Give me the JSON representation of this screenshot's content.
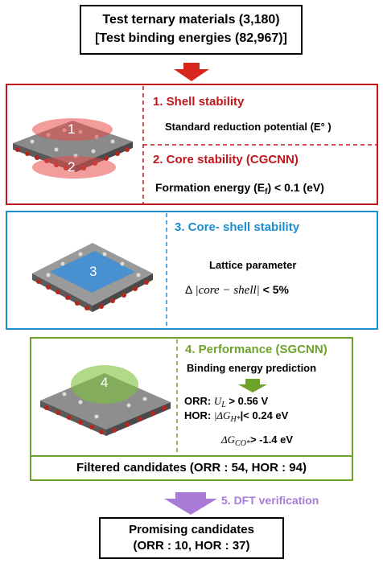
{
  "top_box": {
    "line1": "Test ternary materials (3,180)",
    "line2": "[Test binding energies (82,967)]"
  },
  "stage1": {
    "title": "1. Shell stability",
    "criterion": "Standard reduction potential (E° )",
    "marker1": "1",
    "marker2": "2",
    "color": "#c0161b"
  },
  "stage2": {
    "title": "2. Core stability (CGCNN)",
    "criterion_prefix": "Formation energy (E",
    "criterion_sub": "f",
    "criterion_suffix": ") < 0.1 (eV)"
  },
  "stage3": {
    "title": "3. Core- shell stability",
    "criterion1": "Lattice parameter",
    "delta": "Δ",
    "expr": "|core − shell|",
    "threshold": " < 5%",
    "marker": "3",
    "color": "#1b8ed1"
  },
  "stage4": {
    "title": "4. Performance (SGCNN)",
    "subtitle": "Binding energy prediction",
    "orr_prefix": "ORR: ",
    "orr_sym": "U",
    "orr_sub": "L",
    "orr_suffix": " > 0.56 V",
    "hor_prefix": "HOR: ",
    "hor_sym": "|ΔG",
    "hor_sub": "H*",
    "hor_suffix": "|< 0.24 eV",
    "co_sym": "ΔG",
    "co_sub": "CO*",
    "co_suffix": "> -1.4 eV",
    "marker": "4",
    "color": "#6ea22a",
    "filtered": "Filtered candidates (ORR : 54, HOR : 94)"
  },
  "stage5": {
    "title": "5. DFT verification",
    "color": "#a97bd6"
  },
  "bottom_box": {
    "line1": "Promising candidates",
    "line2": "(ORR : 10, HOR : 37)"
  }
}
